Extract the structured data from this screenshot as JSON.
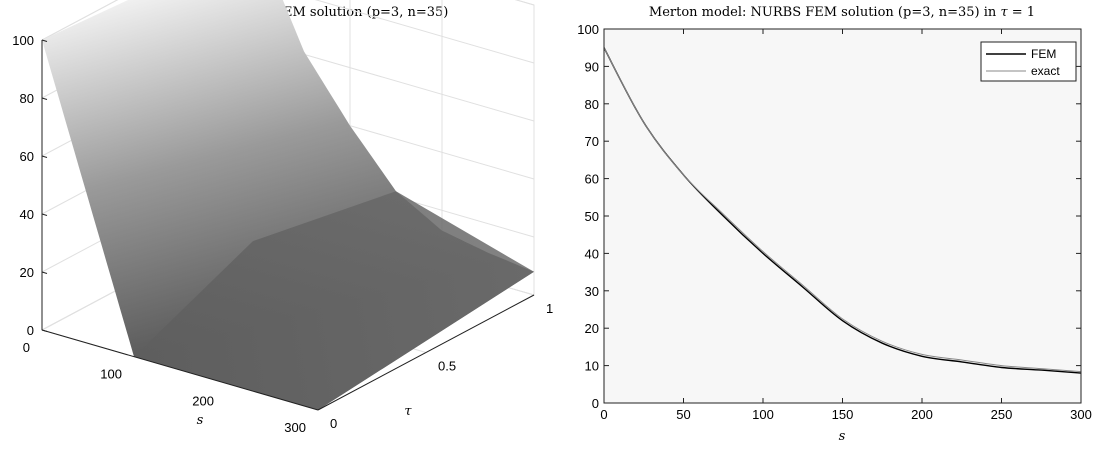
{
  "chart_data": [
    {
      "type": "surface",
      "title": "Merton model: NURBS FEM solution (p=3, n=35)",
      "xlabel": "s",
      "ylabel": "τ",
      "zlabel": "",
      "xlim": [
        0,
        300
      ],
      "ylim": [
        0,
        1
      ],
      "zlim": [
        0,
        100
      ],
      "xticks": [
        "0",
        "100",
        "200",
        "300"
      ],
      "yticks": [
        "0",
        "0.5",
        "1"
      ],
      "zticks": [
        "0",
        "20",
        "40",
        "60",
        "80",
        "100"
      ],
      "grid": true,
      "colormap": "gray",
      "surface_edges": {
        "s": [
          0,
          50,
          100,
          150,
          200,
          250,
          300
        ],
        "tau0": [
          100,
          50,
          0,
          0,
          0,
          0,
          0
        ],
        "tau1": [
          95,
          61,
          40,
          22,
          13,
          10,
          8
        ]
      }
    },
    {
      "type": "line",
      "title_prefix": "Merton model: NURBS FEM solution (p=3, n=35) in",
      "title_math_var": "τ",
      "title_math_rest": " = 1",
      "xlabel": "s",
      "ylabel": "",
      "xlim": [
        0,
        300
      ],
      "ylim": [
        0,
        100
      ],
      "xticks": [
        0,
        50,
        100,
        150,
        200,
        250,
        300
      ],
      "yticks": [
        0,
        10,
        20,
        30,
        40,
        50,
        60,
        70,
        80,
        90,
        100
      ],
      "grid": false,
      "legend_position": "top-right",
      "background": "#f7f7f7",
      "series": [
        {
          "name": "FEM",
          "color": "#000000",
          "x": [
            0,
            25,
            50,
            75,
            100,
            125,
            150,
            175,
            200,
            225,
            250,
            275,
            300
          ],
          "y": [
            95,
            75,
            61,
            50,
            40,
            31,
            22,
            16,
            12.5,
            11,
            9.5,
            8.8,
            8
          ]
        },
        {
          "name": "exact",
          "color": "#888888",
          "x": [
            0,
            25,
            50,
            75,
            100,
            125,
            150,
            175,
            200,
            225,
            250,
            275,
            300
          ],
          "y": [
            95,
            75,
            61,
            50.5,
            40.5,
            31.5,
            22.5,
            16.5,
            13,
            11.5,
            10,
            9.2,
            8.4
          ]
        }
      ]
    }
  ]
}
